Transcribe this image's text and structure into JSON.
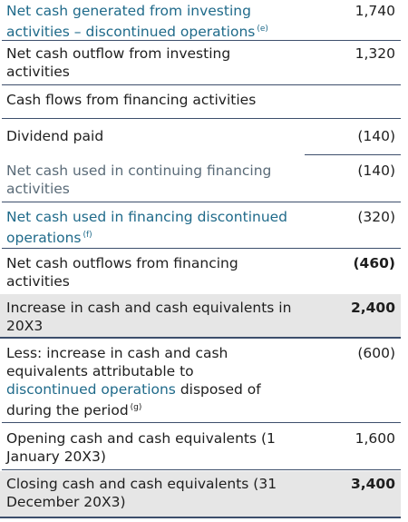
{
  "rows": [
    {
      "label": "Net cash generated from investing activities – discontinued operations",
      "note": "(e)",
      "value": "1,740"
    },
    {
      "label": "Net cash outflow from investing activities",
      "value": "1,320"
    },
    {
      "label": "Cash flows from financing activities",
      "value": ""
    },
    {
      "label": "Dividend paid",
      "value": "(140)"
    },
    {
      "label": "Net cash used in continuing financing activities",
      "value": "(140)"
    },
    {
      "label": "Net cash used in financing discontinued operations",
      "note": "(f)",
      "value": "(320)"
    },
    {
      "label": "Net cash outflows from financing activities",
      "value": "(460)"
    },
    {
      "label": "Increase in cash and cash equivalents in 20X3",
      "value": "2,400"
    },
    {
      "label_part1": "Less: increase in cash and cash equivalents attributable to",
      "label_link": "discontinued operations",
      "label_part2": "disposed of during the period",
      "note": "(g)",
      "value": "(600)"
    },
    {
      "label": "Opening cash and cash equivalents (1 January 20X3)",
      "value": "1,600"
    },
    {
      "label": "Closing cash and cash equivalents (31 December 20X3)",
      "value": "3,400"
    }
  ]
}
